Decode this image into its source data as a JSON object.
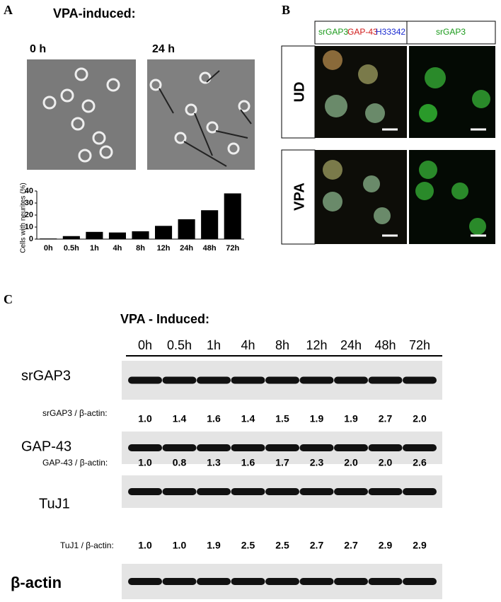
{
  "panel_a": {
    "label": "A",
    "title": "VPA-induced:",
    "image_labels": [
      "0 h",
      "24 h"
    ]
  },
  "chart_data": {
    "type": "bar",
    "y_label": "Cells with neurites (%)",
    "categories": [
      "0h",
      "0.5h",
      "1h",
      "4h",
      "8h",
      "12h",
      "24h",
      "48h",
      "72h"
    ],
    "values": [
      0.5,
      2.5,
      6,
      5.5,
      6.5,
      11,
      16.5,
      24,
      38
    ],
    "color": "#000000",
    "ylim": [
      0,
      40
    ],
    "yticks": [
      0,
      10,
      20,
      30,
      40
    ],
    "grid": false
  },
  "panel_b": {
    "label": "B",
    "header_left": [
      "srGAP3",
      "GAP-43",
      "H33342"
    ],
    "header_right": "srGAP3",
    "rows": [
      "UD",
      "VPA"
    ]
  },
  "panel_c": {
    "label": "C",
    "title": "VPA - Induced:",
    "lanes": [
      "0h",
      "0.5h",
      "1h",
      "4h",
      "8h",
      "12h",
      "24h",
      "48h",
      "72h"
    ],
    "blots": [
      {
        "name": "srGAP3",
        "ratio_label": "srGAP3 / β-actin:",
        "ratios": [
          "1.0",
          "1.4",
          "1.6",
          "1.4",
          "1.5",
          "1.9",
          "1.9",
          "2.7",
          "2.0"
        ]
      },
      {
        "name": "GAP-43",
        "ratio_label": "GAP-43 / β-actin:",
        "ratios": [
          "1.0",
          "0.8",
          "1.3",
          "1.6",
          "1.7",
          "2.3",
          "2.0",
          "2.0",
          "2.6"
        ]
      },
      {
        "name": "TuJ1",
        "ratio_label": "TuJ1 / β-actin:",
        "ratios": [
          "1.0",
          "1.0",
          "1.9",
          "2.5",
          "2.5",
          "2.7",
          "2.7",
          "2.9",
          "2.9"
        ]
      }
    ],
    "loading_control": "β-actin"
  }
}
